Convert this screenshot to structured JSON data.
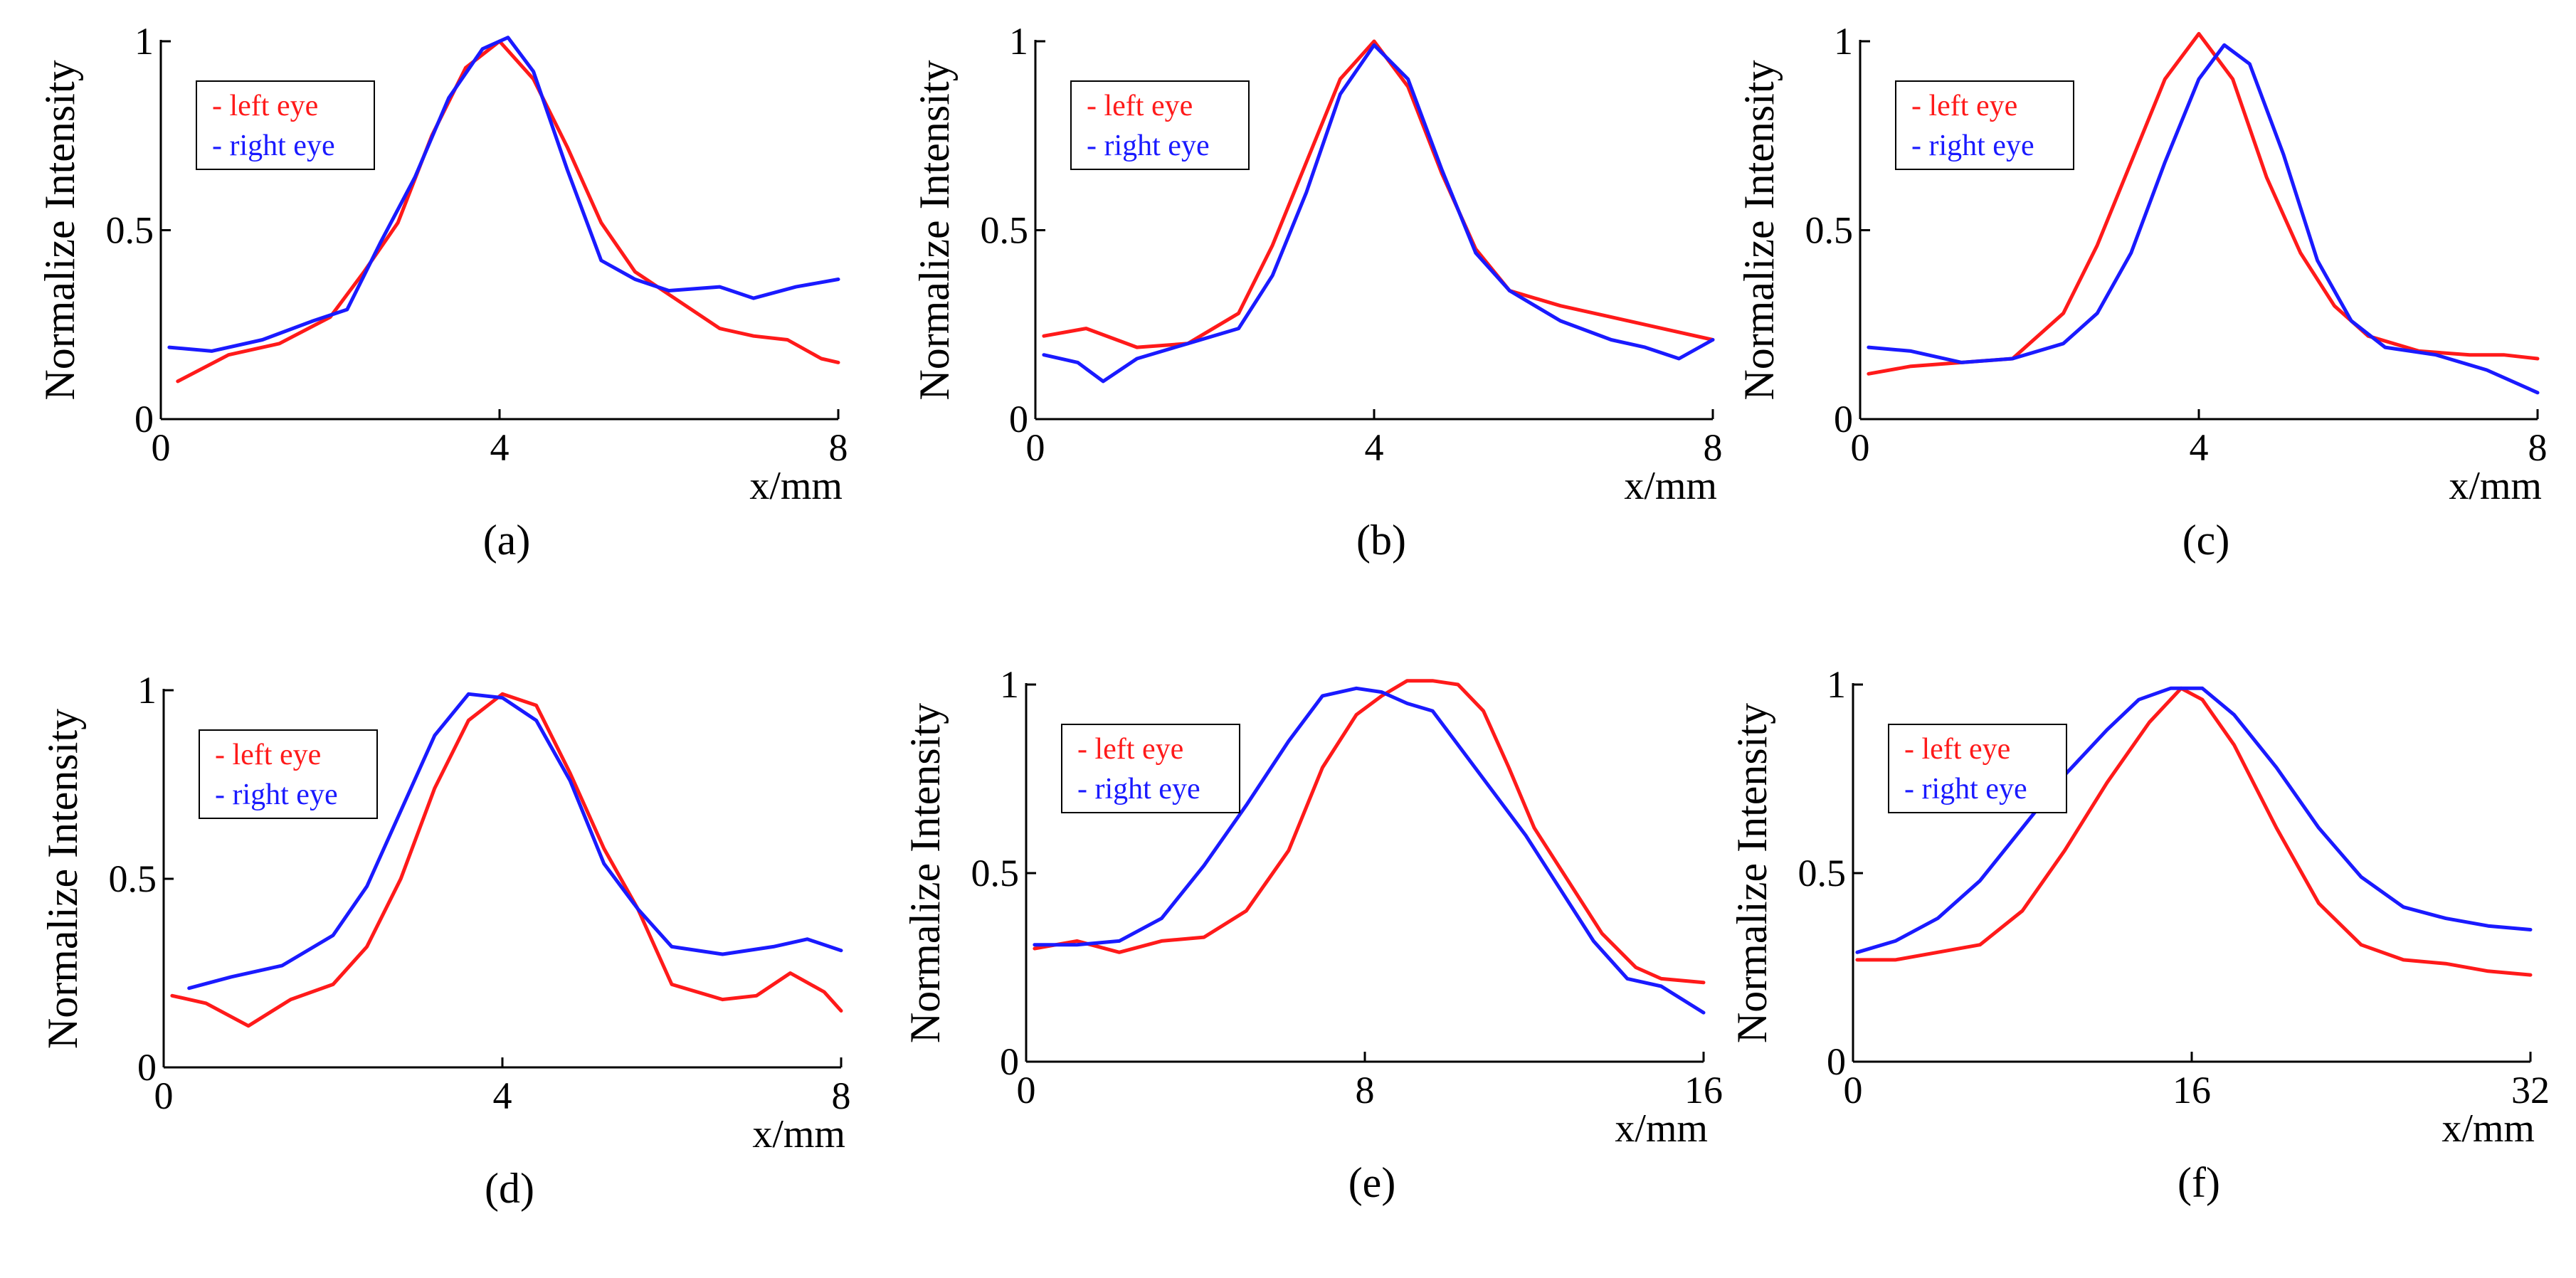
{
  "figure": {
    "ylabel": "Normalize Intensity",
    "xlabel": "x/mm"
  },
  "colors": {
    "left": "#ff1a1a",
    "right": "#1a1aff"
  },
  "chart_data": [
    {
      "type": "line",
      "panel_label": "(a)",
      "xlabel": "x/mm",
      "ylabel": "Normalize Intensity",
      "xlim": [
        0,
        8
      ],
      "ylim": [
        0,
        1
      ],
      "xticks": [
        "0",
        "4",
        "8"
      ],
      "yticks": [
        "0",
        "0.5",
        "1"
      ],
      "legend": [
        "- left eye",
        "- right eye"
      ],
      "series": [
        {
          "name": "left eye",
          "color": "#ff1a1a",
          "x": [
            0.2,
            0.8,
            1.4,
            2.0,
            2.4,
            2.8,
            3.2,
            3.6,
            4.0,
            4.4,
            4.8,
            5.2,
            5.6,
            6.0,
            6.6,
            7.0,
            7.4,
            7.8,
            8.0
          ],
          "y": [
            0.1,
            0.17,
            0.2,
            0.27,
            0.39,
            0.52,
            0.75,
            0.93,
            1.0,
            0.9,
            0.72,
            0.52,
            0.39,
            0.33,
            0.24,
            0.22,
            0.21,
            0.16,
            0.15
          ]
        },
        {
          "name": "right eye",
          "color": "#1a1aff",
          "x": [
            0.1,
            0.6,
            1.2,
            1.8,
            2.2,
            2.6,
            3.0,
            3.4,
            3.8,
            4.1,
            4.4,
            4.8,
            5.2,
            5.6,
            6.0,
            6.6,
            7.0,
            7.5,
            8.0
          ],
          "y": [
            0.19,
            0.18,
            0.21,
            0.26,
            0.29,
            0.47,
            0.64,
            0.85,
            0.98,
            1.01,
            0.92,
            0.66,
            0.42,
            0.37,
            0.34,
            0.35,
            0.32,
            0.35,
            0.37
          ]
        }
      ]
    },
    {
      "type": "line",
      "panel_label": "(b)",
      "xlabel": "x/mm",
      "ylabel": "Normalize Intensity",
      "xlim": [
        0,
        8
      ],
      "ylim": [
        0,
        1
      ],
      "xticks": [
        "0",
        "4",
        "8"
      ],
      "yticks": [
        "0",
        "0.5",
        "1"
      ],
      "legend": [
        "- left eye",
        "- right eye"
      ],
      "series": [
        {
          "name": "left eye",
          "color": "#ff1a1a",
          "x": [
            0.1,
            0.6,
            1.2,
            1.8,
            2.4,
            2.8,
            3.2,
            3.6,
            4.0,
            4.4,
            4.8,
            5.2,
            5.6,
            6.2,
            6.8,
            7.4,
            8.0
          ],
          "y": [
            0.22,
            0.24,
            0.19,
            0.2,
            0.28,
            0.46,
            0.68,
            0.9,
            1.0,
            0.88,
            0.65,
            0.45,
            0.34,
            0.3,
            0.27,
            0.24,
            0.21
          ]
        },
        {
          "name": "right eye",
          "color": "#1a1aff",
          "x": [
            0.1,
            0.5,
            0.8,
            1.2,
            1.8,
            2.4,
            2.8,
            3.2,
            3.6,
            4.0,
            4.4,
            4.8,
            5.2,
            5.6,
            6.2,
            6.8,
            7.2,
            7.6,
            8.0
          ],
          "y": [
            0.17,
            0.15,
            0.1,
            0.16,
            0.2,
            0.24,
            0.38,
            0.6,
            0.86,
            0.99,
            0.9,
            0.66,
            0.44,
            0.34,
            0.26,
            0.21,
            0.19,
            0.16,
            0.21
          ]
        }
      ]
    },
    {
      "type": "line",
      "panel_label": "(c)",
      "xlabel": "x/mm",
      "ylabel": "Normalize Intensity",
      "xlim": [
        0,
        8
      ],
      "ylim": [
        0,
        1
      ],
      "xticks": [
        "0",
        "4",
        "8"
      ],
      "yticks": [
        "0",
        "0.5",
        "1"
      ],
      "legend": [
        "- left eye",
        "- right eye"
      ],
      "series": [
        {
          "name": "left eye",
          "color": "#ff1a1a",
          "x": [
            0.1,
            0.6,
            1.2,
            1.8,
            2.4,
            2.8,
            3.2,
            3.6,
            4.0,
            4.4,
            4.8,
            5.2,
            5.6,
            6.0,
            6.6,
            7.2,
            7.6,
            8.0
          ],
          "y": [
            0.12,
            0.14,
            0.15,
            0.16,
            0.28,
            0.46,
            0.68,
            0.9,
            1.02,
            0.9,
            0.64,
            0.44,
            0.3,
            0.22,
            0.18,
            0.17,
            0.17,
            0.16
          ]
        },
        {
          "name": "right eye",
          "color": "#1a1aff",
          "x": [
            0.1,
            0.6,
            1.2,
            1.8,
            2.4,
            2.8,
            3.2,
            3.6,
            4.0,
            4.3,
            4.6,
            5.0,
            5.4,
            5.8,
            6.2,
            6.8,
            7.4,
            8.0
          ],
          "y": [
            0.19,
            0.18,
            0.15,
            0.16,
            0.2,
            0.28,
            0.44,
            0.68,
            0.9,
            0.99,
            0.94,
            0.7,
            0.42,
            0.26,
            0.19,
            0.17,
            0.13,
            0.07
          ]
        }
      ]
    },
    {
      "type": "line",
      "panel_label": "(d)",
      "xlabel": "x/mm",
      "ylabel": "Normalize Intensity",
      "xlim": [
        0,
        8
      ],
      "ylim": [
        0,
        1
      ],
      "xticks": [
        "0",
        "4",
        "8"
      ],
      "yticks": [
        "0",
        "0.5",
        "1"
      ],
      "legend": [
        "- left eye",
        "- right eye"
      ],
      "series": [
        {
          "name": "left eye",
          "color": "#ff1a1a",
          "x": [
            0.1,
            0.5,
            1.0,
            1.5,
            2.0,
            2.4,
            2.8,
            3.2,
            3.6,
            4.0,
            4.4,
            4.8,
            5.2,
            5.6,
            6.0,
            6.6,
            7.0,
            7.4,
            7.8,
            8.0
          ],
          "y": [
            0.19,
            0.17,
            0.11,
            0.18,
            0.22,
            0.32,
            0.5,
            0.74,
            0.92,
            0.99,
            0.96,
            0.78,
            0.58,
            0.42,
            0.22,
            0.18,
            0.19,
            0.25,
            0.2,
            0.15
          ]
        },
        {
          "name": "right eye",
          "color": "#1a1aff",
          "x": [
            0.3,
            0.8,
            1.4,
            2.0,
            2.4,
            2.8,
            3.2,
            3.6,
            4.0,
            4.4,
            4.8,
            5.2,
            5.6,
            6.0,
            6.6,
            7.2,
            7.6,
            8.0
          ],
          "y": [
            0.21,
            0.24,
            0.27,
            0.35,
            0.48,
            0.68,
            0.88,
            0.99,
            0.98,
            0.92,
            0.76,
            0.54,
            0.42,
            0.32,
            0.3,
            0.32,
            0.34,
            0.31
          ]
        }
      ]
    },
    {
      "type": "line",
      "panel_label": "(e)",
      "xlabel": "x/mm",
      "ylabel": "Normalize Intensity",
      "xlim": [
        0,
        16
      ],
      "ylim": [
        0,
        1
      ],
      "xticks": [
        "0",
        "8",
        "16"
      ],
      "yticks": [
        "0",
        "0.5",
        "1"
      ],
      "legend": [
        "- left eye",
        "- right eye"
      ],
      "series": [
        {
          "name": "left eye",
          "color": "#ff1a1a",
          "x": [
            0.2,
            1.2,
            2.2,
            3.2,
            4.2,
            5.2,
            6.2,
            7.0,
            7.8,
            8.4,
            9.0,
            9.6,
            10.2,
            10.8,
            11.4,
            12.0,
            12.8,
            13.6,
            14.4,
            15.0,
            16.0
          ],
          "y": [
            0.3,
            0.32,
            0.29,
            0.32,
            0.33,
            0.4,
            0.56,
            0.78,
            0.92,
            0.97,
            1.01,
            1.01,
            1.0,
            0.93,
            0.78,
            0.62,
            0.48,
            0.34,
            0.25,
            0.22,
            0.21
          ]
        },
        {
          "name": "right eye",
          "color": "#1a1aff",
          "x": [
            0.2,
            1.2,
            2.2,
            3.2,
            4.2,
            5.2,
            6.2,
            7.0,
            7.8,
            8.4,
            9.0,
            9.6,
            10.2,
            11.0,
            11.8,
            12.6,
            13.4,
            14.2,
            15.0,
            16.0
          ],
          "y": [
            0.31,
            0.31,
            0.32,
            0.38,
            0.52,
            0.68,
            0.85,
            0.97,
            0.99,
            0.98,
            0.95,
            0.93,
            0.84,
            0.72,
            0.6,
            0.46,
            0.32,
            0.22,
            0.2,
            0.13
          ]
        }
      ]
    },
    {
      "type": "line",
      "panel_label": "(f)",
      "xlabel": "x/mm",
      "ylabel": "Normalize Intensity",
      "xlim": [
        0,
        32
      ],
      "ylim": [
        0,
        1
      ],
      "xticks": [
        "0",
        "16",
        "32"
      ],
      "yticks": [
        "0",
        "0.5",
        "1"
      ],
      "legend": [
        "- left eye",
        "- right eye"
      ],
      "series": [
        {
          "name": "left eye",
          "color": "#ff1a1a",
          "x": [
            0.2,
            2.0,
            4.0,
            6.0,
            8.0,
            10.0,
            12.0,
            14.0,
            15.5,
            16.5,
            18.0,
            20.0,
            22.0,
            24.0,
            26.0,
            28.0,
            30.0,
            32.0
          ],
          "y": [
            0.27,
            0.27,
            0.29,
            0.31,
            0.4,
            0.56,
            0.74,
            0.9,
            0.99,
            0.96,
            0.84,
            0.62,
            0.42,
            0.31,
            0.27,
            0.26,
            0.24,
            0.23
          ]
        },
        {
          "name": "right eye",
          "color": "#1a1aff",
          "x": [
            0.2,
            2.0,
            4.0,
            6.0,
            8.0,
            10.0,
            12.0,
            13.5,
            15.0,
            16.5,
            18.0,
            20.0,
            22.0,
            24.0,
            26.0,
            28.0,
            30.0,
            32.0
          ],
          "y": [
            0.29,
            0.32,
            0.38,
            0.48,
            0.62,
            0.76,
            0.88,
            0.96,
            0.99,
            0.99,
            0.92,
            0.78,
            0.62,
            0.49,
            0.41,
            0.38,
            0.36,
            0.35
          ]
        }
      ]
    }
  ]
}
